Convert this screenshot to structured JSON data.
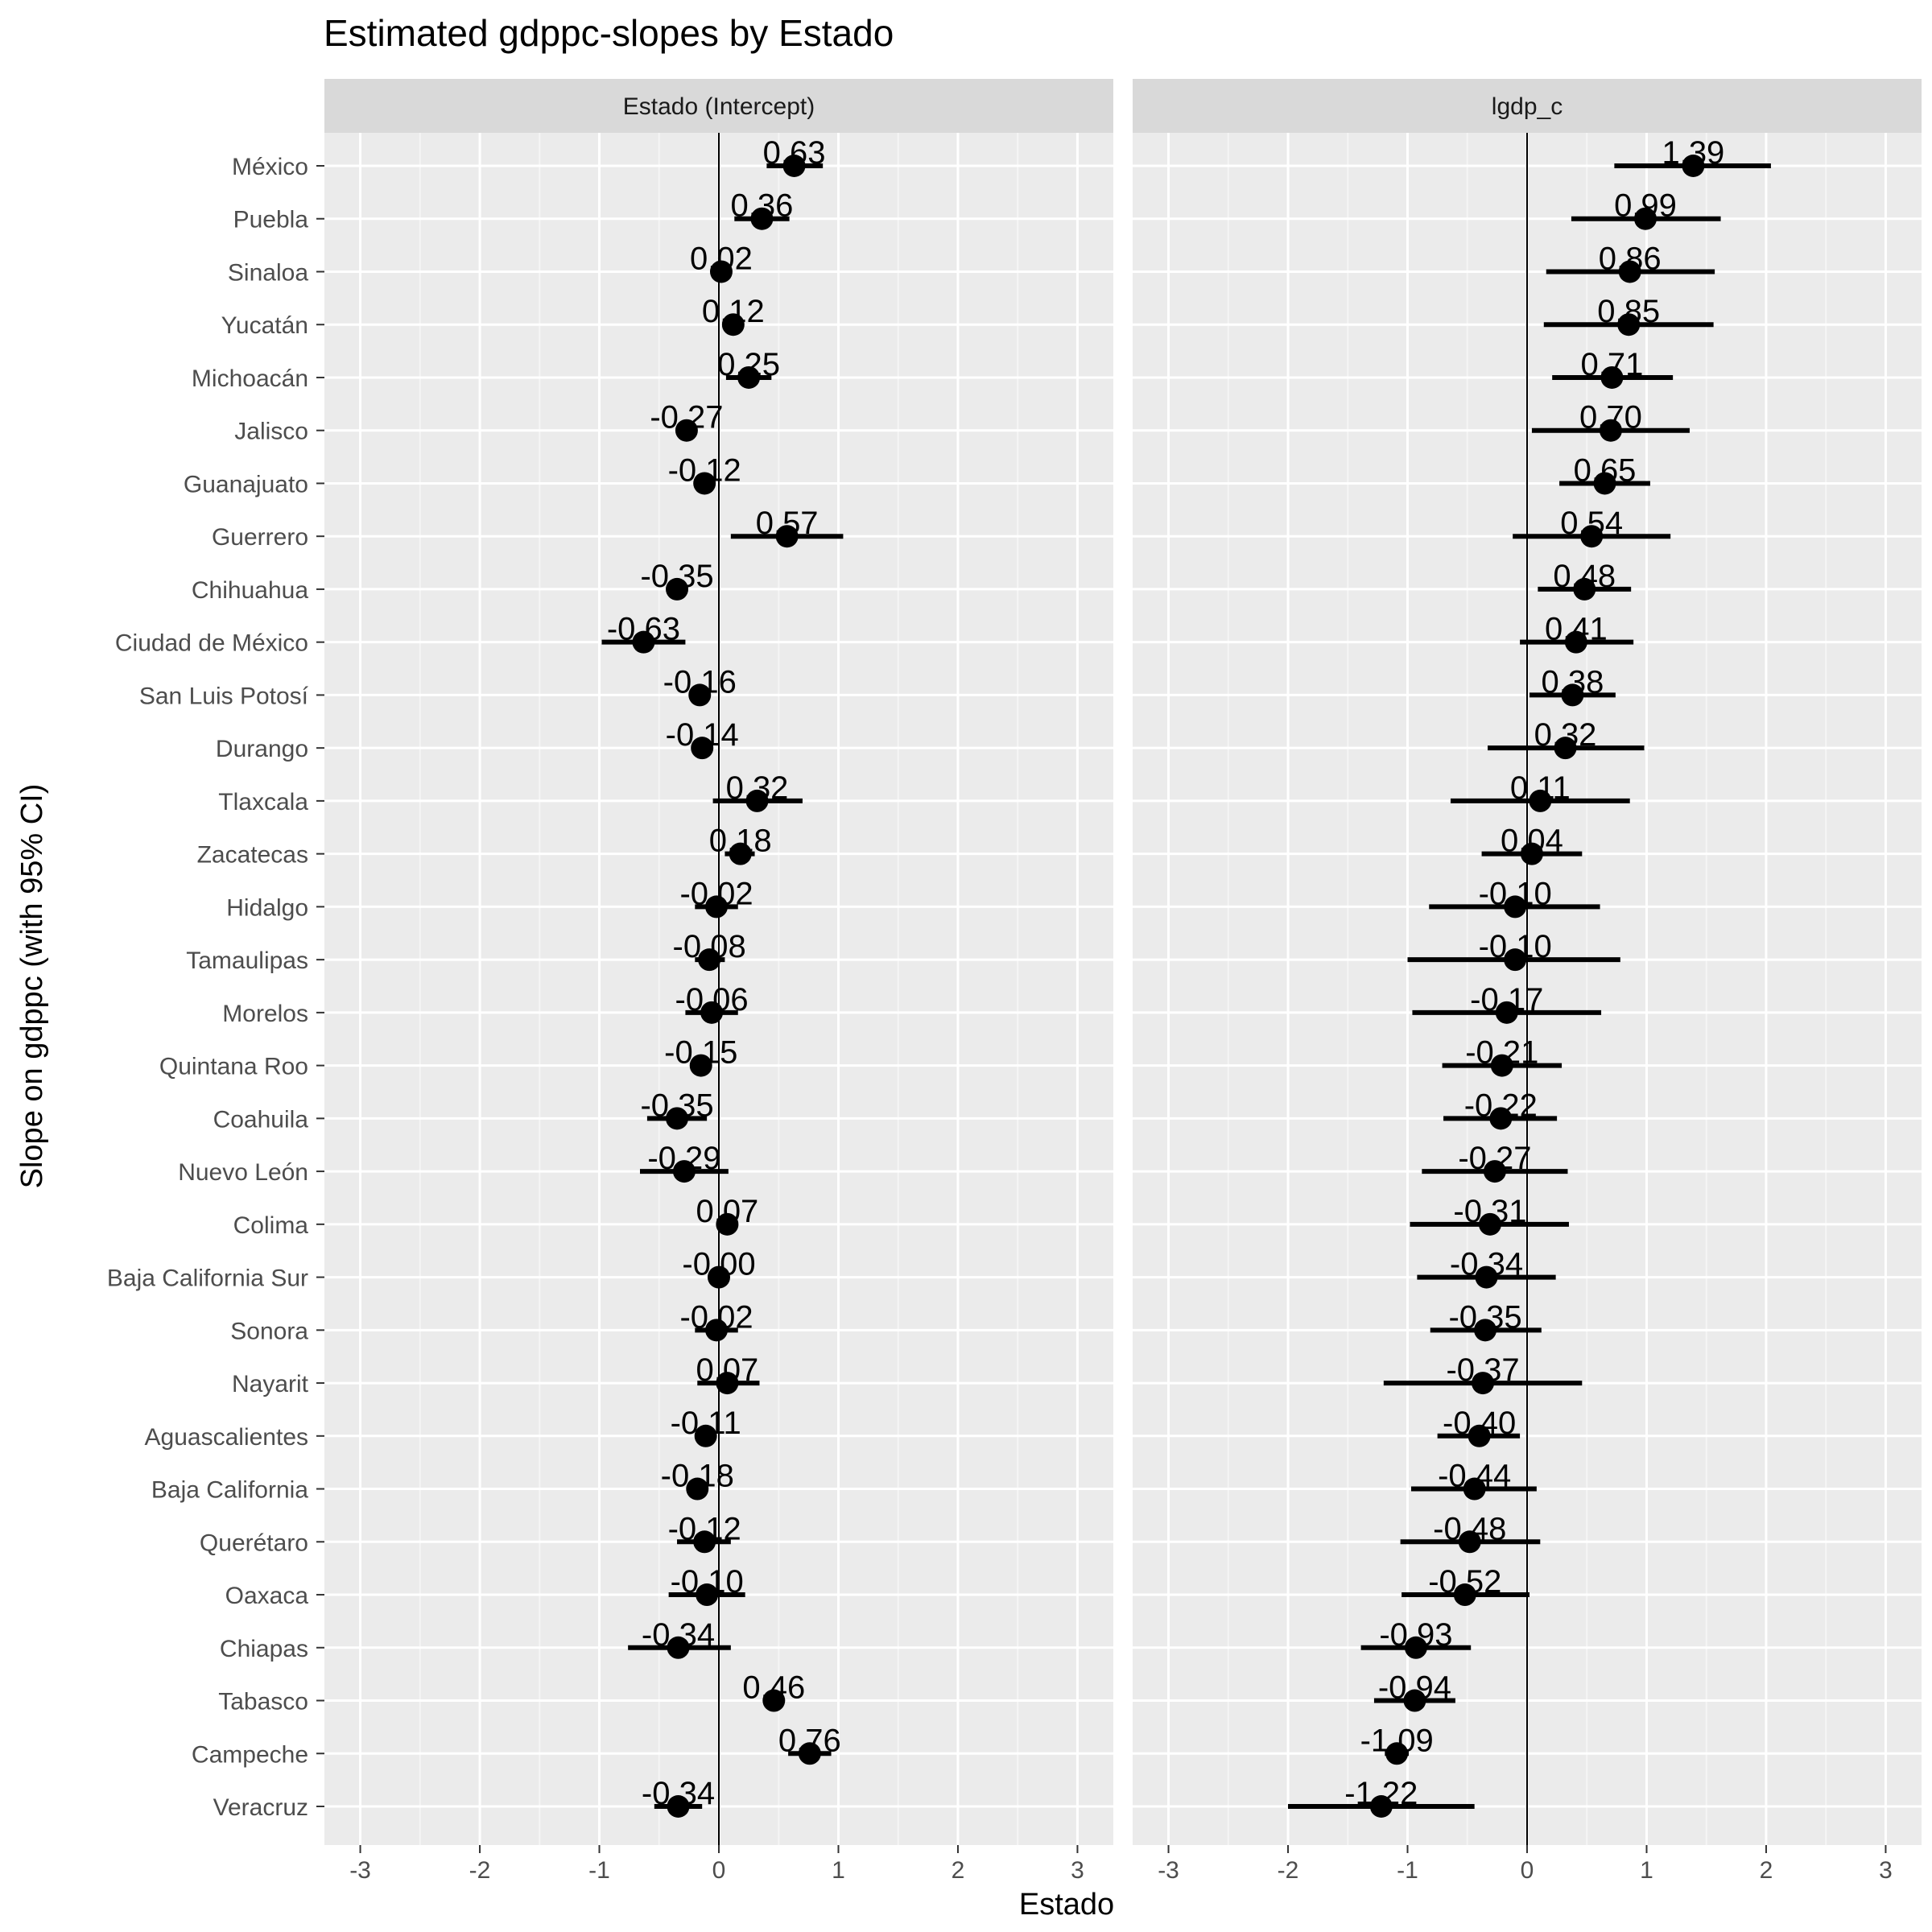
{
  "chart_data": {
    "type": "scatter",
    "title": "Estimated gdppc-slopes by Estado",
    "xlabel": "Estado",
    "ylabel": "Slope on gdppc (with 95% CI)",
    "xlim": [
      -3.3,
      3.3
    ],
    "x_ticks": [
      -3,
      -2,
      -1,
      0,
      1,
      2,
      3
    ],
    "grid": true,
    "reference_line_x": 0,
    "categories": [
      "México",
      "Puebla",
      "Sinaloa",
      "Yucatán",
      "Michoacán",
      "Jalisco",
      "Guanajuato",
      "Guerrero",
      "Chihuahua",
      "Ciudad de México",
      "San Luis Potosí",
      "Durango",
      "Tlaxcala",
      "Zacatecas",
      "Hidalgo",
      "Tamaulipas",
      "Morelos",
      "Quintana Roo",
      "Coahuila",
      "Nuevo León",
      "Colima",
      "Baja California Sur",
      "Sonora",
      "Nayarit",
      "Aguascalientes",
      "Baja California",
      "Querétaro",
      "Oaxaca",
      "Chiapas",
      "Tabasco",
      "Campeche",
      "Veracruz"
    ],
    "facets": [
      {
        "strip": "Estado (Intercept)",
        "estimates": [
          0.63,
          0.36,
          0.02,
          0.12,
          0.25,
          -0.27,
          -0.12,
          0.57,
          -0.35,
          -0.63,
          -0.16,
          -0.14,
          0.32,
          0.18,
          -0.02,
          -0.08,
          -0.06,
          -0.15,
          -0.35,
          -0.29,
          0.07,
          -0.0,
          -0.02,
          0.07,
          -0.11,
          -0.18,
          -0.12,
          -0.1,
          -0.34,
          0.46,
          0.76,
          -0.34
        ],
        "labels": [
          "0.63",
          "0.36",
          "0.02",
          "0.12",
          "0.25",
          "-0.27",
          "-0.12",
          "0.57",
          "-0.35",
          "-0.63",
          "-0.16",
          "-0.14",
          "0.32",
          "0.18",
          "-0.02",
          "-0.08",
          "-0.06",
          "-0.15",
          "-0.35",
          "-0.29",
          "0.07",
          "-0.00",
          "-0.02",
          "0.07",
          "-0.11",
          "-0.18",
          "-0.12",
          "-0.10",
          "-0.34",
          "0.46",
          "0.76",
          "-0.34"
        ],
        "ci_low": [
          0.4,
          0.13,
          0.01,
          0.08,
          0.06,
          -0.36,
          -0.14,
          0.1,
          -0.4,
          -0.98,
          -0.2,
          -0.18,
          -0.05,
          0.05,
          -0.2,
          -0.2,
          -0.28,
          -0.2,
          -0.6,
          -0.66,
          0.04,
          -0.04,
          -0.2,
          -0.18,
          -0.13,
          -0.24,
          -0.35,
          -0.42,
          -0.76,
          0.44,
          0.58,
          -0.54
        ],
        "ci_high": [
          0.87,
          0.59,
          0.04,
          0.16,
          0.44,
          -0.18,
          -0.1,
          1.04,
          -0.3,
          -0.28,
          -0.12,
          -0.1,
          0.7,
          0.3,
          0.16,
          0.05,
          0.16,
          -0.1,
          -0.1,
          0.08,
          0.1,
          0.04,
          0.16,
          0.34,
          -0.09,
          -0.12,
          0.1,
          0.22,
          0.1,
          0.48,
          0.94,
          -0.14
        ]
      },
      {
        "strip": "lgdp_c",
        "estimates": [
          1.39,
          0.99,
          0.86,
          0.85,
          0.71,
          0.7,
          0.65,
          0.54,
          0.48,
          0.41,
          0.38,
          0.32,
          0.11,
          0.04,
          -0.1,
          -0.1,
          -0.17,
          -0.21,
          -0.22,
          -0.27,
          -0.31,
          -0.34,
          -0.35,
          -0.37,
          -0.4,
          -0.44,
          -0.48,
          -0.52,
          -0.93,
          -0.94,
          -1.09,
          -1.22
        ],
        "labels": [
          "1.39",
          "0.99",
          "0.86",
          "0.85",
          "0.71",
          "0.70",
          "0.65",
          "0.54",
          "0.48",
          "0.41",
          "0.38",
          "0.32",
          "0.11",
          "0.04",
          "-0.10",
          "-0.10",
          "-0.17",
          "-0.21",
          "-0.22",
          "-0.27",
          "-0.31",
          "-0.34",
          "-0.35",
          "-0.37",
          "-0.40",
          "-0.44",
          "-0.48",
          "-0.52",
          "-0.93",
          "-0.94",
          "-1.09",
          "-1.22"
        ],
        "ci_low": [
          0.73,
          0.37,
          0.16,
          0.14,
          0.21,
          0.04,
          0.27,
          -0.12,
          0.09,
          -0.06,
          0.02,
          -0.33,
          -0.64,
          -0.38,
          -0.82,
          -1.0,
          -0.96,
          -0.71,
          -0.7,
          -0.88,
          -0.98,
          -0.92,
          -0.81,
          -1.2,
          -0.75,
          -0.97,
          -1.06,
          -1.05,
          -1.39,
          -1.28,
          -1.19,
          -2.0
        ],
        "ci_high": [
          2.04,
          1.62,
          1.57,
          1.56,
          1.22,
          1.36,
          1.03,
          1.2,
          0.87,
          0.89,
          0.74,
          0.98,
          0.86,
          0.46,
          0.61,
          0.78,
          0.62,
          0.29,
          0.25,
          0.34,
          0.35,
          0.24,
          0.12,
          0.46,
          -0.06,
          0.08,
          0.11,
          0.02,
          -0.47,
          -0.6,
          -0.99,
          -0.44
        ]
      }
    ]
  }
}
